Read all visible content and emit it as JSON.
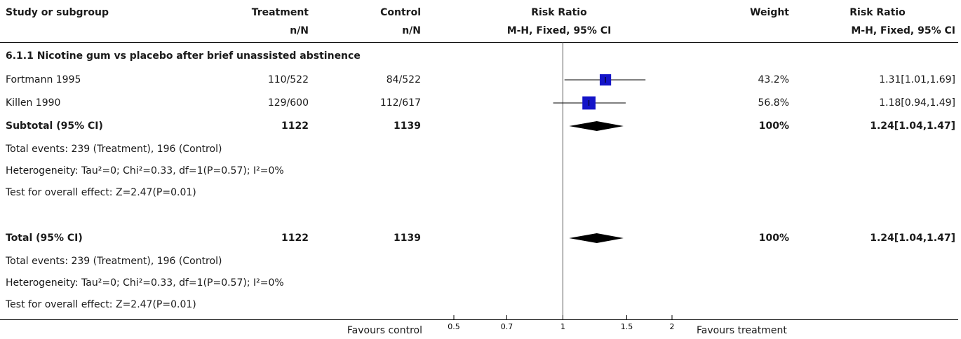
{
  "header": {
    "study": "Study or subgroup",
    "treatment": "Treatment",
    "control": "Control",
    "rr_plot": "Risk Ratio",
    "weight": "Weight",
    "rr_value": "Risk Ratio",
    "treatment_sub": "n/N",
    "control_sub": "n/N",
    "rr_plot_sub": "M-H, Fixed, 95% CI",
    "rr_value_sub": "M-H, Fixed, 95% CI"
  },
  "subgroup": {
    "title": "6.1.1 Nicotine gum vs placebo after brief unassisted abstinence",
    "studies": [
      {
        "name": "Fortmann 1995",
        "treatment": "110/522",
        "control": "84/522",
        "weight": "43.2%",
        "ci": "1.31[1.01,1.69]"
      },
      {
        "name": "Killen 1990",
        "treatment": "129/600",
        "control": "112/617",
        "weight": "56.8%",
        "ci": "1.18[0.94,1.49]"
      }
    ],
    "subtotal": {
      "label": "Subtotal (95% CI)",
      "treatment": "1122",
      "control": "1139",
      "weight": "100%",
      "ci": "1.24[1.04,1.47]"
    },
    "events": "Total events: 239 (Treatment), 196 (Control)",
    "heterogeneity": "Heterogeneity: Tau²=0; Chi²=0.33, df=1(P=0.57); I²=0%",
    "effect": "Test for overall effect: Z=2.47(P=0.01)"
  },
  "total": {
    "label": "Total (95% CI)",
    "treatment": "1122",
    "control": "1139",
    "weight": "100%",
    "ci": "1.24[1.04,1.47]",
    "events": "Total events: 239 (Treatment), 196 (Control)",
    "heterogeneity": "Heterogeneity: Tau²=0; Chi²=0.33, df=1(P=0.57); I²=0%",
    "effect": "Test for overall effect: Z=2.47(P=0.01)"
  },
  "footer": {
    "favours_left": "Favours control",
    "favours_right": "Favours treatment"
  },
  "chart_data": {
    "type": "forest",
    "scale": "log",
    "xlim": [
      0.5,
      2
    ],
    "ticks": [
      0.5,
      0.7,
      1,
      1.5,
      2
    ],
    "tick_labels": [
      "0.5",
      "0.7",
      "1",
      "1.5",
      "2"
    ],
    "studies": [
      {
        "name": "Fortmann 1995",
        "rr": 1.31,
        "lower": 1.01,
        "upper": 1.69,
        "weight": 43.2
      },
      {
        "name": "Killen 1990",
        "rr": 1.18,
        "lower": 0.94,
        "upper": 1.49,
        "weight": 56.8
      }
    ],
    "pooled": [
      {
        "name": "Subtotal (95% CI)",
        "rr": 1.24,
        "lower": 1.04,
        "upper": 1.47
      },
      {
        "name": "Total (95% CI)",
        "rr": 1.24,
        "lower": 1.04,
        "upper": 1.47
      }
    ],
    "colors": {
      "square": "#1414c8",
      "diamond": "#000000"
    }
  }
}
